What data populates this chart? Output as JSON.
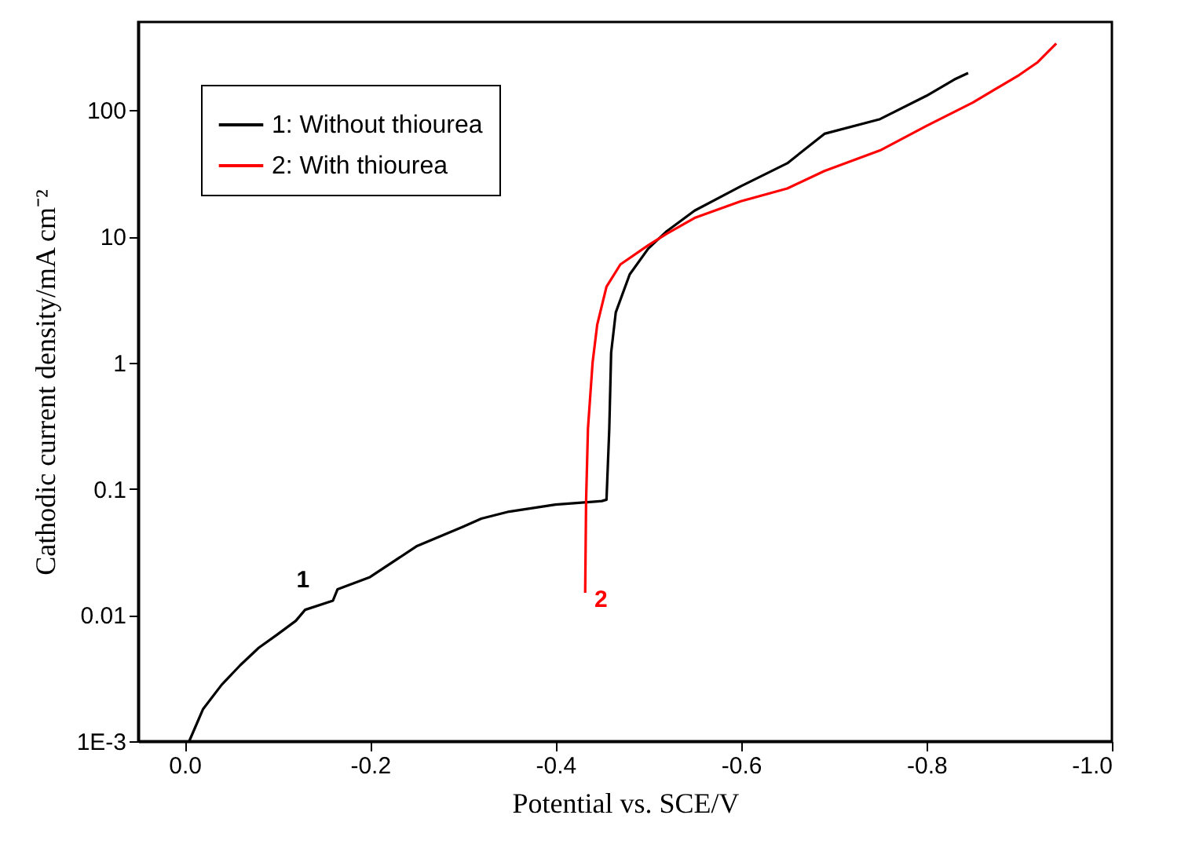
{
  "chart_data": {
    "type": "line",
    "xlabel": "Potential vs. SCE/V",
    "ylabel": "Cathodic current density/mA cm⁻²",
    "xlim": [
      0.05,
      -1.0
    ],
    "xticks": [
      {
        "value": 0,
        "label": "0.0"
      },
      {
        "value": -0.2,
        "label": "-0.2"
      },
      {
        "value": -0.4,
        "label": "-0.4"
      },
      {
        "value": -0.6,
        "label": "-0.6"
      },
      {
        "value": -0.8,
        "label": "-0.8"
      },
      {
        "value": -1.0,
        "label": "-1.0"
      }
    ],
    "ylim": [
      0.001,
      500
    ],
    "yticks": [
      {
        "value": 0.001,
        "label": "1E-3"
      },
      0.01,
      0.1,
      1,
      10,
      100
    ],
    "log": "y",
    "grid": false,
    "legend": "top left",
    "line_style": "solid",
    "marker": "none",
    "series": [
      {
        "name": "1: Without thiourea",
        "color": "#000000",
        "x": [
          -0.005,
          -0.02,
          -0.04,
          -0.06,
          -0.08,
          -0.1,
          -0.12,
          -0.13,
          -0.16,
          -0.165,
          -0.2,
          -0.25,
          -0.3,
          -0.32,
          -0.35,
          -0.4,
          -0.45,
          -0.455,
          -0.458,
          -0.46,
          -0.465,
          -0.48,
          -0.5,
          -0.52,
          -0.55,
          -0.6,
          -0.65,
          -0.69,
          -0.75,
          -0.8,
          -0.83,
          -0.845
        ],
        "values": [
          0.001,
          0.0018,
          0.0028,
          0.004,
          0.0055,
          0.007,
          0.009,
          0.011,
          0.013,
          0.016,
          0.02,
          0.035,
          0.05,
          0.058,
          0.066,
          0.075,
          0.08,
          0.082,
          0.3,
          1.2,
          2.5,
          5,
          8,
          11,
          16,
          25,
          38,
          65,
          85,
          130,
          175,
          197
        ]
      },
      {
        "name": "2: With thiourea",
        "color": "#ff0000",
        "x": [
          -0.432,
          -0.433,
          -0.435,
          -0.44,
          -0.445,
          -0.455,
          -0.47,
          -0.5,
          -0.52,
          -0.55,
          -0.6,
          -0.65,
          -0.69,
          -0.75,
          -0.8,
          -0.85,
          -0.9,
          -0.92,
          -0.94
        ],
        "values": [
          0.015,
          0.08,
          0.3,
          1,
          2,
          4,
          6,
          8.5,
          10.5,
          14,
          19,
          24,
          33,
          48,
          75,
          115,
          190,
          240,
          338
        ]
      }
    ],
    "annotations": [
      "1",
      "2"
    ]
  }
}
